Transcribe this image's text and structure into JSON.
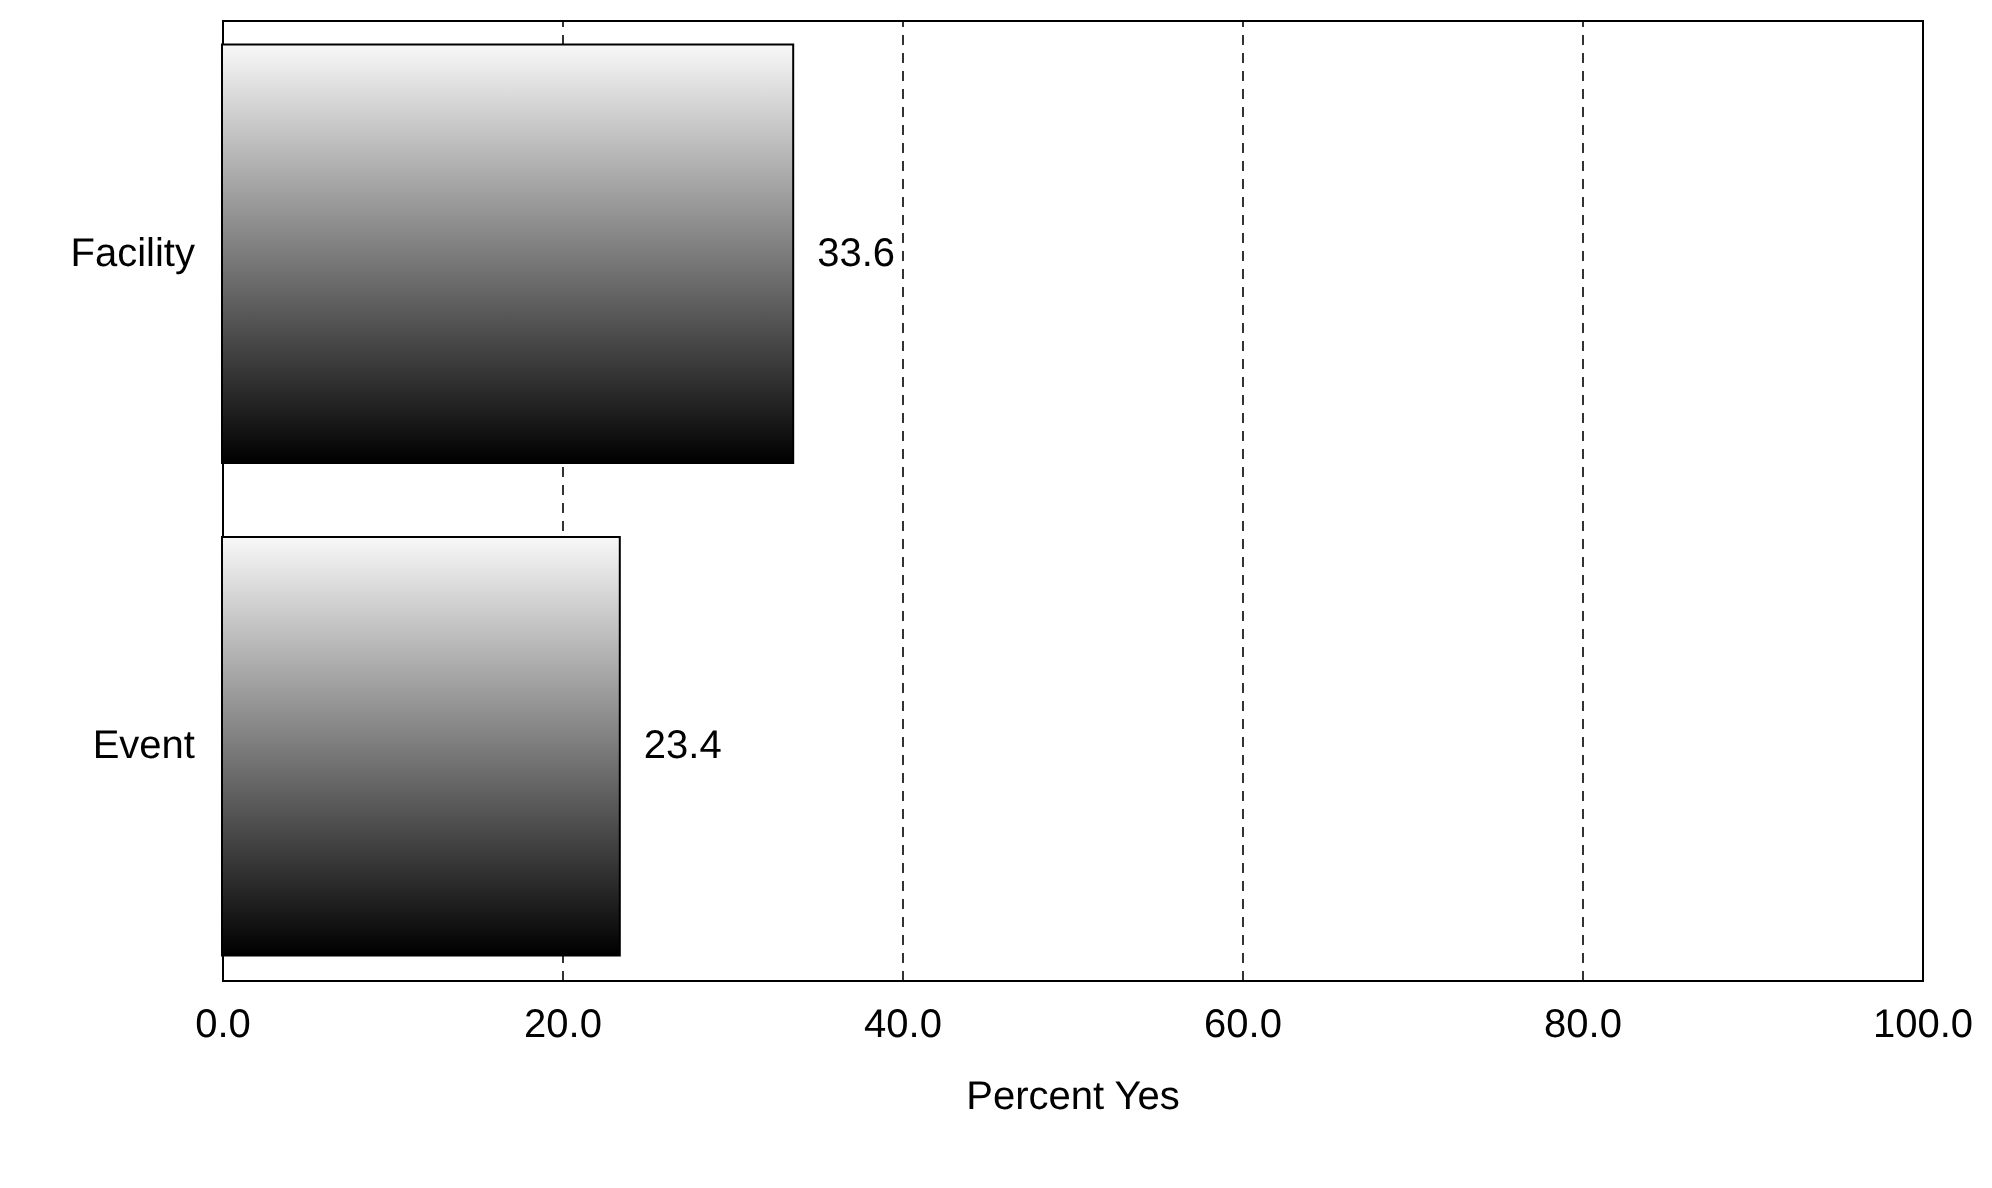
{
  "chart_data": {
    "type": "bar",
    "orientation": "horizontal",
    "xlabel": "Percent Yes",
    "categories": [
      "Facility",
      "Event"
    ],
    "values": [
      33.6,
      23.4
    ],
    "color": "#000000",
    "xlim": [
      0,
      100
    ],
    "xticks": [
      {
        "value": 0,
        "label": "0.0"
      },
      {
        "value": 20,
        "label": "20.0"
      },
      {
        "value": 40,
        "label": "40.0"
      },
      {
        "value": 60,
        "label": "60.0"
      },
      {
        "value": 80,
        "label": "80.0"
      },
      {
        "value": 100,
        "label": "100.0"
      }
    ],
    "grid": "x",
    "data_labels": true
  }
}
